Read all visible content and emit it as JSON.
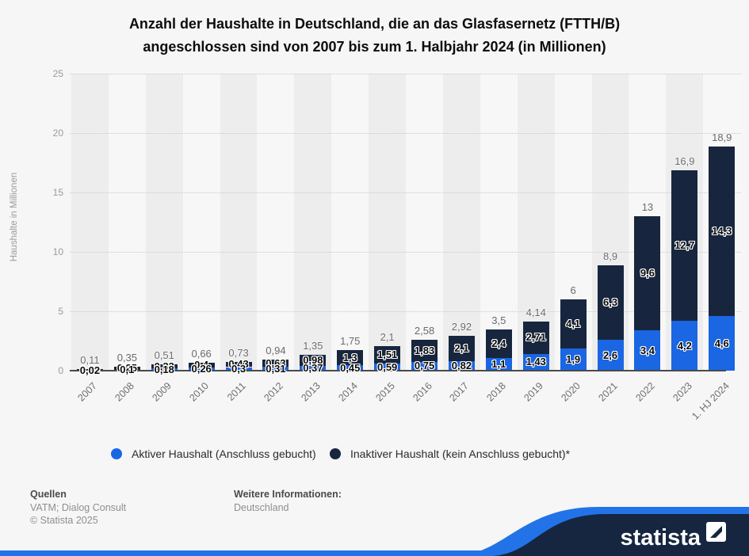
{
  "title_line1": "Anzahl der Haushalte in Deutschland, die an das Glasfasernetz (FTTH/B)",
  "title_line2": "angeschlossen sind von 2007 bis zum 1. Halbjahr 2024 (in Millionen)",
  "chart_data": {
    "type": "bar",
    "stacked": true,
    "categories": [
      "2007",
      "2008",
      "2009",
      "2010",
      "2011",
      "2012",
      "2013",
      "2014",
      "2015",
      "2016",
      "2017",
      "2018",
      "2019",
      "2020",
      "2021",
      "2022",
      "2023",
      "1. HJ 2024"
    ],
    "series": [
      {
        "name": "Aktiver Haushalt (Anschluss gebucht)",
        "color": "#1b66e2",
        "values": [
          0.02,
          0.1,
          0.18,
          0.26,
          0.3,
          0.31,
          0.37,
          0.45,
          0.59,
          0.75,
          0.82,
          1.1,
          1.43,
          1.9,
          2.6,
          3.4,
          4.2,
          4.6
        ],
        "labels": [
          "0,02",
          "0,1",
          "0,18",
          "0,26",
          "0,3",
          "0,31",
          "0,37",
          "0,45",
          "0,59",
          "0,75",
          "0,82",
          "1,1",
          "1,43",
          "1,9",
          "2,6",
          "3,4",
          "4,2",
          "4,6"
        ]
      },
      {
        "name": "Inaktiver Haushalt (kein Anschluss gebucht)*",
        "color": "#17263e",
        "values": [
          0.09,
          0.25,
          0.33,
          0.4,
          0.43,
          0.63,
          0.98,
          1.3,
          1.51,
          1.83,
          2.1,
          2.4,
          2.71,
          4.1,
          6.3,
          9.6,
          12.7,
          14.3
        ],
        "labels": [
          "0,09",
          "0,25",
          "0,33",
          "0,4",
          "0,43",
          "0,63",
          "0,98",
          "1,3",
          "1,51",
          "1,83",
          "2,1",
          "2,4",
          "2,71",
          "4,1",
          "6,3",
          "9,6",
          "12,7",
          "14,3"
        ]
      }
    ],
    "totals": [
      0.11,
      0.35,
      0.51,
      0.66,
      0.73,
      0.94,
      1.35,
      1.75,
      2.1,
      2.58,
      2.92,
      3.5,
      4.14,
      6,
      8.9,
      13,
      16.9,
      18.9
    ],
    "total_labels": [
      "0,11",
      "0,35",
      "0,51",
      "0,66",
      "0,73",
      "0,94",
      "1,35",
      "1,75",
      "2,1",
      "2,58",
      "2,92",
      "3,5",
      "4,14",
      "6",
      "8,9",
      "13",
      "16,9",
      "18,9"
    ],
    "ylabel": "Haushalte in Millionen",
    "yticks": [
      0,
      5,
      10,
      15,
      20,
      25
    ],
    "ylim": [
      0,
      25
    ],
    "grid": "horizontal-dotted",
    "legend_position": "bottom",
    "stripe_colors": [
      "#ededed",
      "#f7f7f7"
    ]
  },
  "footer": {
    "sources_heading": "Quellen",
    "sources": "VATM; Dialog Consult",
    "copyright": "© Statista 2025",
    "info_heading": "Weitere Informationen:",
    "info": "Deutschland"
  },
  "branding": {
    "logo_text": "statista",
    "banner_navy": "#162640",
    "banner_blue": "#2273e8"
  }
}
